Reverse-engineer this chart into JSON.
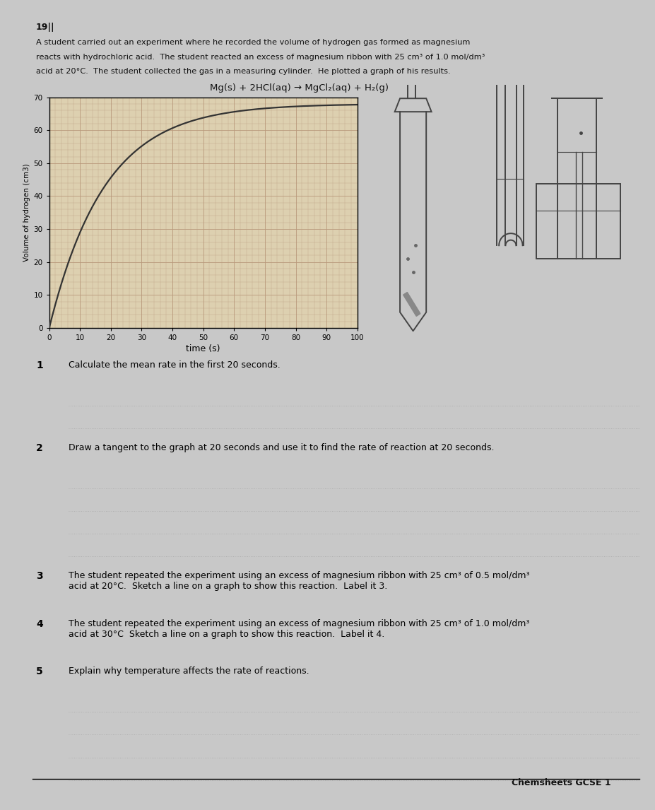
{
  "background_color": "#c8c8c8",
  "paper_color": "#d8d8d8",
  "title_text_line1": "A student carried out an experiment where he recorded the volume of hydrogen gas formed as magnesium",
  "title_text_line2": "reacts with hydrochloric acid.  The student reacted an excess of magnesium ribbon with 25 cm³ of 1.0 mol/dm³",
  "title_text_line3": "acid at 20°C.  The student collected the gas in a measuring cylinder.  He plotted a graph of his results.",
  "equation": "Mg(s) + 2HCl(aq) → MgCl₂(aq) + H₂(g)",
  "graph_xlabel": "time (s)",
  "graph_ylabel": "Volume of hydrogen (cm3)",
  "graph_xlim": [
    0,
    100
  ],
  "graph_ylim": [
    0,
    70
  ],
  "graph_xticks": [
    0,
    10,
    20,
    30,
    40,
    50,
    60,
    70,
    80,
    90,
    100
  ],
  "graph_yticks": [
    0,
    10,
    20,
    30,
    40,
    50,
    60,
    70
  ],
  "curve_color": "#333333",
  "grid_color": "#b8987a",
  "grid_bg": "#ddd0b0",
  "page_num": "19||",
  "footer": "Chemsheets GCSE 1",
  "q1_text": "Calculate the mean rate in the first 20 seconds.",
  "q1_lines": 2,
  "q2_text": "Draw a tangent to the graph at 20 seconds and use it to find the rate of reaction at 20 seconds.",
  "q2_lines": 4,
  "q3_text": "The student repeated the experiment using an excess of magnesium ribbon with 25 cm³ of 0.5 mol/dm³\nacid at 20°C.  Sketch a line on a graph to show this reaction.  Label it 3.",
  "q3_lines": 0,
  "q4_text": "The student repeated the experiment using an excess of magnesium ribbon with 25 cm³ of 1.0 mol/dm³\nacid at 30°C  Sketch a line on a graph to show this reaction.  Label it 4.",
  "q4_lines": 0,
  "q5_text": "Explain why temperature affects the rate of reactions.",
  "q5_lines": 4,
  "answer_line_color": "#aaaaaa",
  "answer_line_style": "dotted",
  "text_color": "#111111"
}
